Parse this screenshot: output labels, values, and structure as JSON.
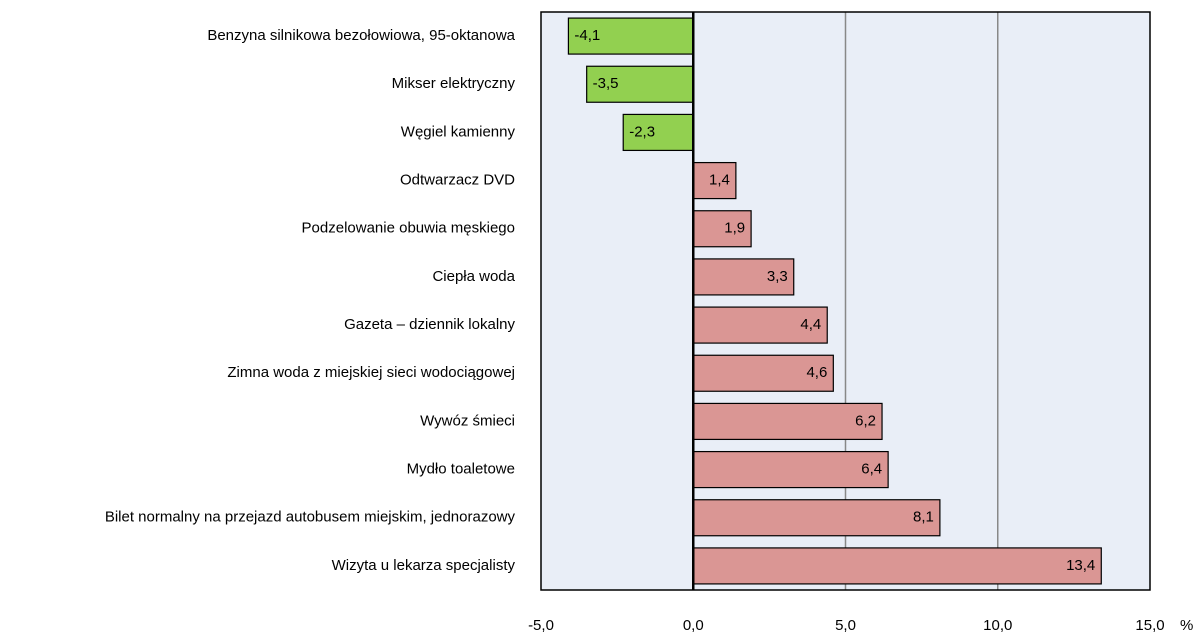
{
  "chart_data": {
    "type": "bar",
    "orientation": "horizontal",
    "categories": [
      "Benzyna silnikowa bezołowiowa, 95-oktanowa",
      "Mikser elektryczny",
      "Węgiel kamienny",
      "Odtwarzacz DVD",
      "Podzelowanie obuwia męskiego",
      "Ciepła woda",
      "Gazeta – dziennik lokalny",
      "Zimna woda z miejskiej sieci wodociągowej",
      "Wywóz śmieci",
      "Mydło toaletowe",
      "Bilet normalny na przejazd autobusem miejskim, jednorazowy",
      "Wizyta u lekarza specjalisty"
    ],
    "values": [
      -4.1,
      -3.5,
      -2.3,
      1.4,
      1.9,
      3.3,
      4.4,
      4.6,
      6.2,
      6.4,
      8.1,
      13.4
    ],
    "value_labels": [
      "-4,1",
      "-3,5",
      "-2,3",
      "1,4",
      "1,9",
      "3,3",
      "4,4",
      "4,6",
      "6,2",
      "6,4",
      "8,1",
      "13,4"
    ],
    "color_negative": "#92d050",
    "color_positive": "#da9694",
    "xlim": [
      -5,
      15
    ],
    "xticks": [
      {
        "value": -5,
        "label": "-5,0"
      },
      {
        "value": 0,
        "label": "0,0"
      },
      {
        "value": 5,
        "label": "5,0"
      },
      {
        "value": 10,
        "label": "10,0"
      },
      {
        "value": 15,
        "label": "15,0"
      }
    ],
    "x_label": "%",
    "grid": true
  }
}
